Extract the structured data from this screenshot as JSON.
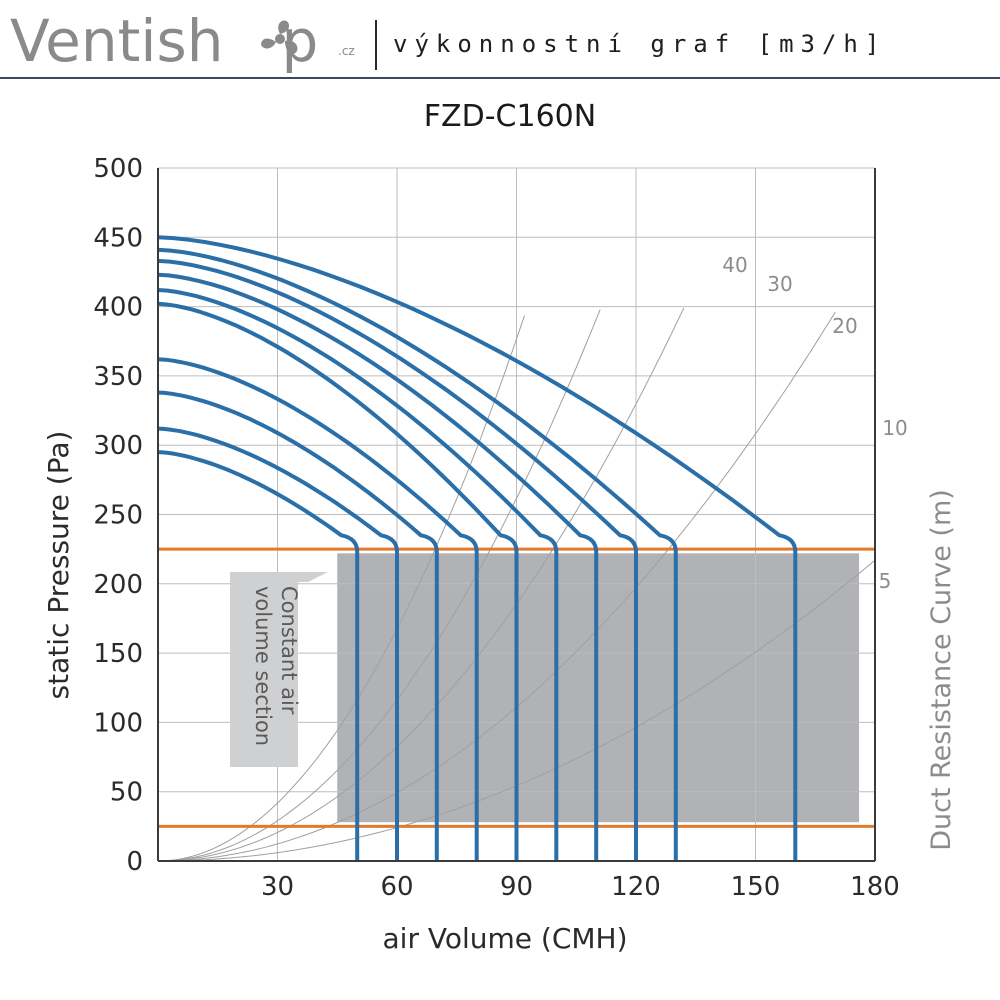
{
  "header": {
    "brand_prefix": "Ventish",
    "brand_suffix": "p",
    "brand_tld": ".cz",
    "subtitle": "výkonnostní graf [m3/h]"
  },
  "colors": {
    "curve": "#2a6fa8",
    "limit_line": "#e07b2c",
    "shade": "#b0b2b5",
    "duct_curve": "#a0a0a0",
    "grid": "#bdbdbd",
    "axis_text": "#2b2b2b",
    "right_label": "#8c8c8c",
    "brand_gray": "#8a8a8a"
  },
  "chart_data": {
    "type": "line",
    "title": "FZD-C160N",
    "xlabel": "air Volume (CMH)",
    "ylabel": "static Pressure (Pa)",
    "right_label": "Duct Resistance Curve (m)",
    "xlim": [
      0,
      180
    ],
    "ylim": [
      0,
      500
    ],
    "xticks": [
      30,
      60,
      90,
      120,
      150,
      180
    ],
    "yticks": [
      0,
      50,
      100,
      150,
      200,
      250,
      300,
      350,
      400,
      450,
      500
    ],
    "grid": true,
    "fan_curves": [
      {
        "p0": 295,
        "x_end": 50,
        "x_knee": 50
      },
      {
        "p0": 312,
        "x_end": 60,
        "x_knee": 60
      },
      {
        "p0": 338,
        "x_end": 70,
        "x_knee": 70
      },
      {
        "p0": 362,
        "x_end": 80,
        "x_knee": 80
      },
      {
        "p0": 402,
        "x_end": 90,
        "x_knee": 90
      },
      {
        "p0": 412,
        "x_end": 100,
        "x_knee": 100
      },
      {
        "p0": 423,
        "x_end": 110,
        "x_knee": 110
      },
      {
        "p0": 433,
        "x_end": 120,
        "x_knee": 120
      },
      {
        "p0": 441,
        "x_end": 130,
        "x_knee": 130
      },
      {
        "p0": 450,
        "x_end": 160,
        "x_knee": 160
      }
    ],
    "knee_pressure": 235,
    "limit_lines": [
      225,
      25
    ],
    "constant_air_region": {
      "x": [
        45,
        176
      ],
      "y": [
        28,
        222
      ]
    },
    "constant_air_label": [
      "Constant air",
      "volume section"
    ],
    "duct_resistance_curves": [
      {
        "label": "40",
        "k": 0.0465
      },
      {
        "label": "30",
        "k": 0.0323
      },
      {
        "label": "20",
        "k": 0.0229
      },
      {
        "label": "10",
        "k": 0.0137
      },
      {
        "label": "5",
        "k": 0.0067
      }
    ]
  }
}
